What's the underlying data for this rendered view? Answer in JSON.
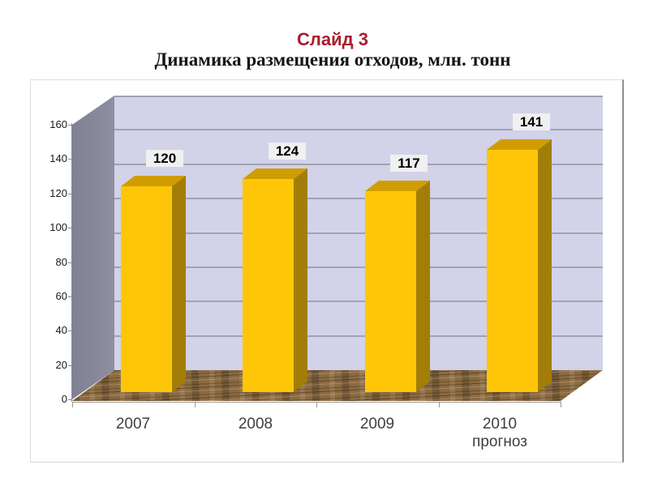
{
  "slide": {
    "title": "Слайд 3",
    "subtitle": "Динамика размещения отходов, млн. тонн"
  },
  "chart_data": {
    "type": "bar",
    "projection": "3d",
    "title": "Динамика размещения отходов, млн. тонн",
    "unit": "млн. тонн",
    "categories": [
      {
        "label": "2007"
      },
      {
        "label": "2008"
      },
      {
        "label": "2009"
      },
      {
        "label": "2010",
        "label2": "прогноз"
      }
    ],
    "values": [
      120,
      124,
      117,
      141
    ],
    "ylim": [
      0,
      160
    ],
    "yticks": [
      0,
      20,
      40,
      60,
      80,
      100,
      120,
      140,
      160
    ],
    "grid": true,
    "legend": "none",
    "data_labels": true,
    "colors": {
      "title_accent": "#A81E2C",
      "bar_front": "#FFC609",
      "bar_top": "#D09D00",
      "bar_side": "#A37E06",
      "wall_back": "#D2D2E8",
      "wall_side": "#87879A",
      "gridline": "#A2A2B4",
      "floor_base": "#8A6A42",
      "floor_dark": "#5F432A",
      "floor_light": "#A98C60",
      "value_label_bg": "#F0F0F0"
    }
  }
}
